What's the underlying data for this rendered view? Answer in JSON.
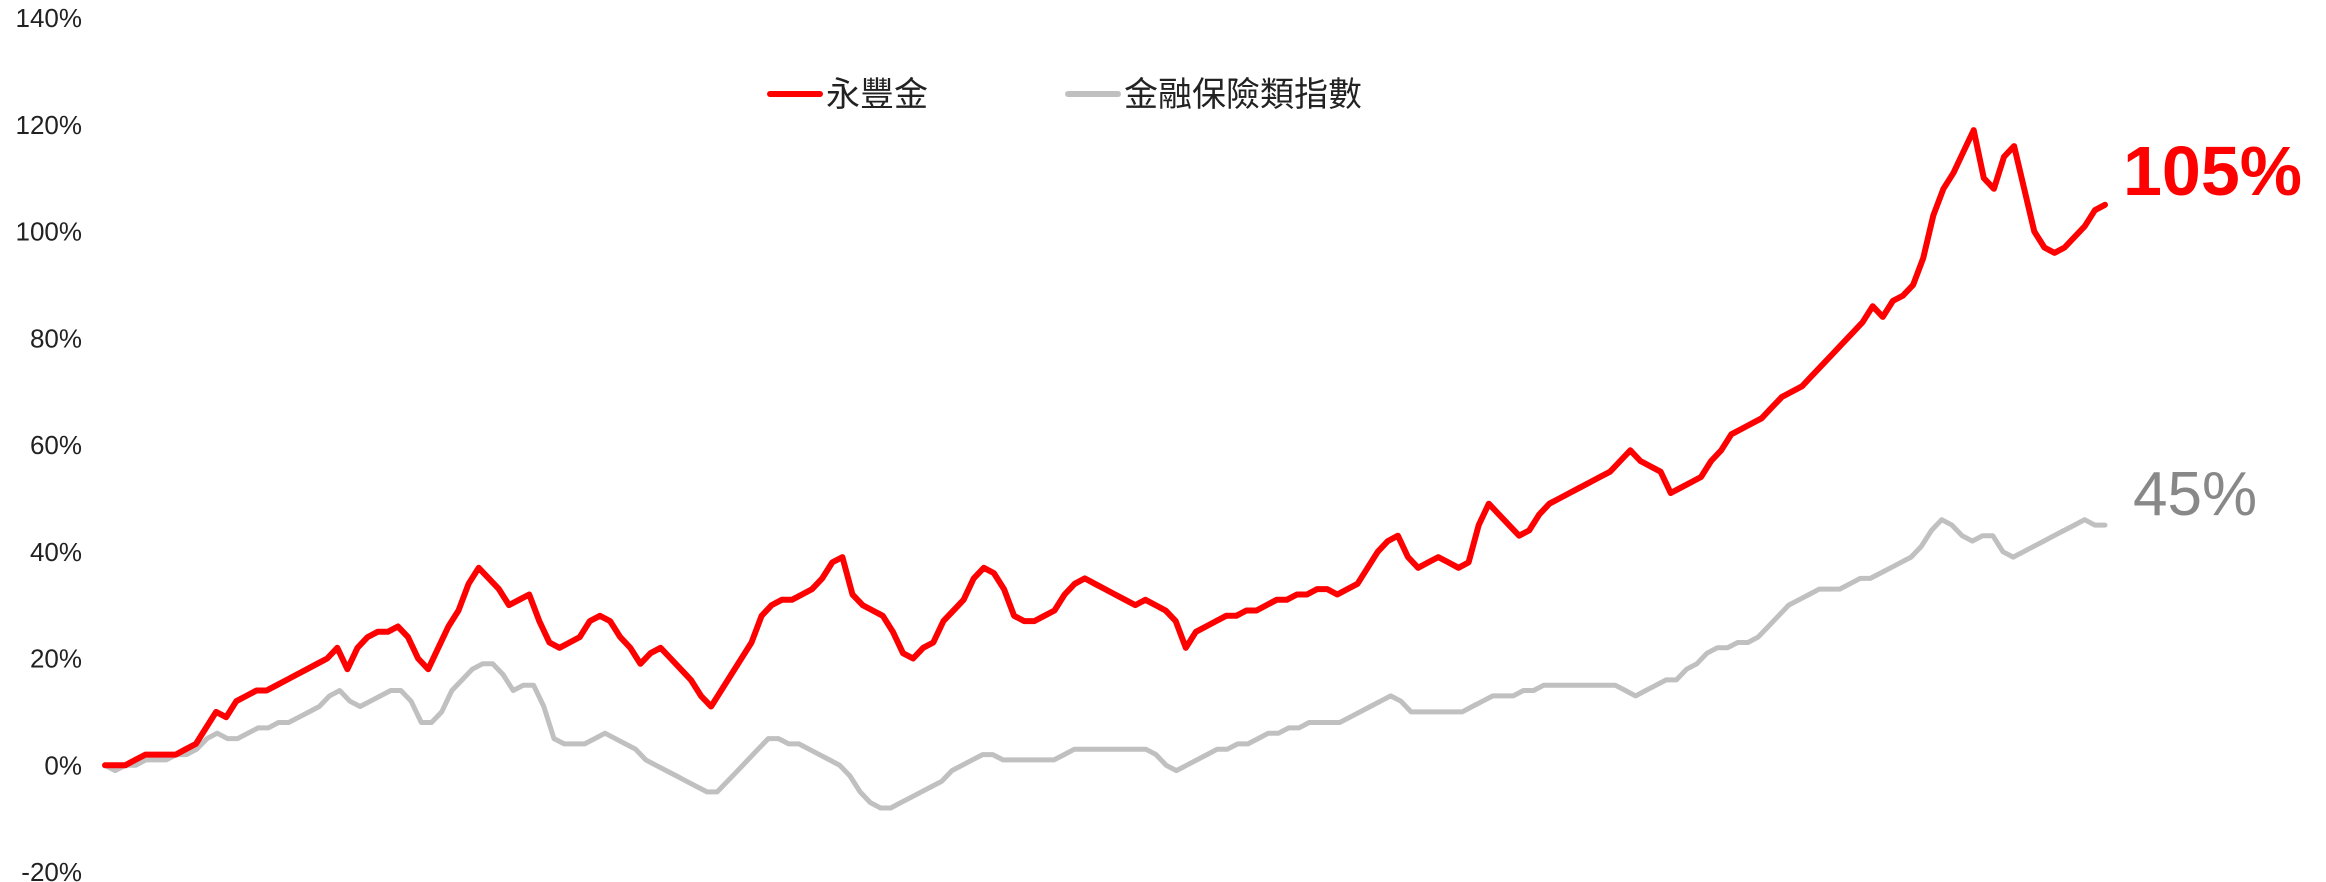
{
  "chart_data": {
    "type": "line",
    "ylim": [
      -20,
      140
    ],
    "y_ticks": [
      "140%",
      "120%",
      "100%",
      "80%",
      "60%",
      "40%",
      "20%",
      "0%",
      "-20%"
    ],
    "y_tick_values": [
      140,
      120,
      100,
      80,
      60,
      40,
      20,
      0,
      -20
    ],
    "grid": false,
    "legend_position": "top-center",
    "series": [
      {
        "name": "永豐金",
        "color": "#ff0000",
        "end_label": "105%",
        "values": [
          0,
          0,
          0,
          1,
          2,
          2,
          2,
          2,
          3,
          4,
          7,
          10,
          9,
          12,
          13,
          14,
          14,
          15,
          16,
          17,
          18,
          19,
          20,
          22,
          18,
          22,
          24,
          25,
          25,
          26,
          24,
          20,
          18,
          22,
          26,
          29,
          34,
          37,
          35,
          33,
          30,
          31,
          32,
          27,
          23,
          22,
          23,
          24,
          27,
          28,
          27,
          24,
          22,
          19,
          21,
          22,
          20,
          18,
          16,
          13,
          11,
          14,
          17,
          20,
          23,
          28,
          30,
          31,
          31,
          32,
          33,
          35,
          38,
          39,
          32,
          30,
          29,
          28,
          25,
          21,
          20,
          22,
          23,
          27,
          29,
          31,
          35,
          37,
          36,
          33,
          28,
          27,
          27,
          28,
          29,
          32,
          34,
          35,
          34,
          33,
          32,
          31,
          30,
          31,
          30,
          29,
          27,
          22,
          25,
          26,
          27,
          28,
          28,
          29,
          29,
          30,
          31,
          31,
          32,
          32,
          33,
          33,
          32,
          33,
          34,
          37,
          40,
          42,
          43,
          39,
          37,
          38,
          39,
          38,
          37,
          38,
          45,
          49,
          47,
          45,
          43,
          44,
          47,
          49,
          50,
          51,
          52,
          53,
          54,
          55,
          57,
          59,
          57,
          56,
          55,
          51,
          52,
          53,
          54,
          57,
          59,
          62,
          63,
          64,
          65,
          67,
          69,
          70,
          71,
          73,
          75,
          77,
          79,
          81,
          83,
          86,
          84,
          87,
          88,
          90,
          95,
          103,
          108,
          111,
          115,
          119,
          110,
          108,
          114,
          116,
          108,
          100,
          97,
          96,
          97,
          99,
          101,
          104,
          105
        ]
      },
      {
        "name": "金融保險類指數",
        "color": "#c0c0c0",
        "end_label": "45%",
        "values": [
          0,
          -1,
          0,
          0,
          1,
          1,
          1,
          2,
          2,
          3,
          5,
          6,
          5,
          5,
          6,
          7,
          7,
          8,
          8,
          9,
          10,
          11,
          13,
          14,
          12,
          11,
          12,
          13,
          14,
          14,
          12,
          8,
          8,
          10,
          14,
          16,
          18,
          19,
          19,
          17,
          14,
          15,
          15,
          11,
          5,
          4,
          4,
          4,
          5,
          6,
          5,
          4,
          3,
          1,
          0,
          -1,
          -2,
          -3,
          -4,
          -5,
          -5,
          -3,
          -1,
          1,
          3,
          5,
          5,
          4,
          4,
          3,
          2,
          1,
          0,
          -2,
          -5,
          -7,
          -8,
          -8,
          -7,
          -6,
          -5,
          -4,
          -3,
          -1,
          0,
          1,
          2,
          2,
          1,
          1,
          1,
          1,
          1,
          1,
          2,
          3,
          3,
          3,
          3,
          3,
          3,
          3,
          3,
          2,
          0,
          -1,
          0,
          1,
          2,
          3,
          3,
          4,
          4,
          5,
          6,
          6,
          7,
          7,
          8,
          8,
          8,
          8,
          9,
          10,
          11,
          12,
          13,
          12,
          10,
          10,
          10,
          10,
          10,
          10,
          11,
          12,
          13,
          13,
          13,
          14,
          14,
          15,
          15,
          15,
          15,
          15,
          15,
          15,
          15,
          14,
          13,
          14,
          15,
          16,
          16,
          18,
          19,
          21,
          22,
          22,
          23,
          23,
          24,
          26,
          28,
          30,
          31,
          32,
          33,
          33,
          33,
          34,
          35,
          35,
          36,
          37,
          38,
          39,
          41,
          44,
          46,
          45,
          43,
          42,
          43,
          43,
          40,
          39,
          40,
          41,
          42,
          43,
          44,
          45,
          46,
          45,
          45
        ]
      }
    ]
  }
}
